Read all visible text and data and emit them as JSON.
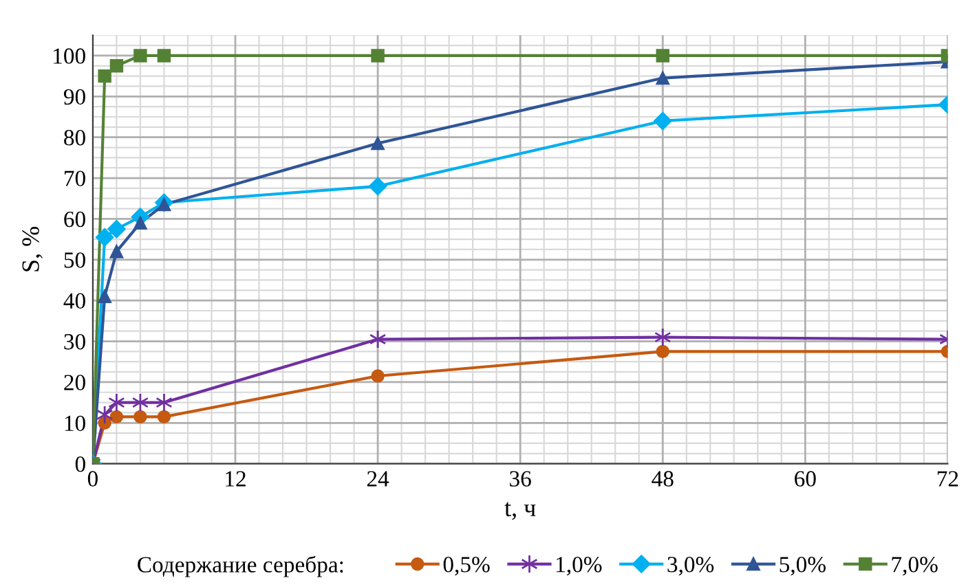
{
  "chart_data": {
    "type": "line",
    "xlabel": "t, ч",
    "ylabel": "S, %",
    "legend_title": "Содержание серебра:",
    "x": [
      0,
      1,
      2,
      4,
      6,
      24,
      48,
      72
    ],
    "series": [
      {
        "name": "0,5%",
        "color": "#c55a11",
        "marker": "circle",
        "values": [
          0,
          10,
          11.5,
          11.5,
          11.5,
          21.5,
          27.5,
          27.5
        ]
      },
      {
        "name": "1,0%",
        "color": "#7030a0",
        "marker": "cross",
        "values": [
          0,
          12,
          15,
          15,
          15,
          30.5,
          31,
          30.5
        ]
      },
      {
        "name": "3,0%",
        "color": "#00b0f0",
        "marker": "diamond",
        "values": [
          0,
          55.5,
          57.5,
          60.5,
          64,
          68,
          84,
          88
        ]
      },
      {
        "name": "5,0%",
        "color": "#2f5597",
        "marker": "triangle",
        "values": [
          0,
          41,
          52,
          59,
          63.5,
          78.5,
          94.5,
          98.5
        ]
      },
      {
        "name": "7,0%",
        "color": "#548235",
        "marker": "square",
        "values": [
          0,
          95,
          97.5,
          100,
          100,
          100,
          100,
          100
        ]
      }
    ],
    "xlim": [
      0,
      72
    ],
    "xticks": [
      0,
      12,
      24,
      36,
      48,
      60,
      72
    ],
    "ylim": [
      0,
      105
    ],
    "yticks": [
      0,
      10,
      20,
      30,
      40,
      50,
      60,
      70,
      80,
      90,
      100
    ],
    "grid": true,
    "legend": "bottom",
    "line_style": "solid"
  }
}
